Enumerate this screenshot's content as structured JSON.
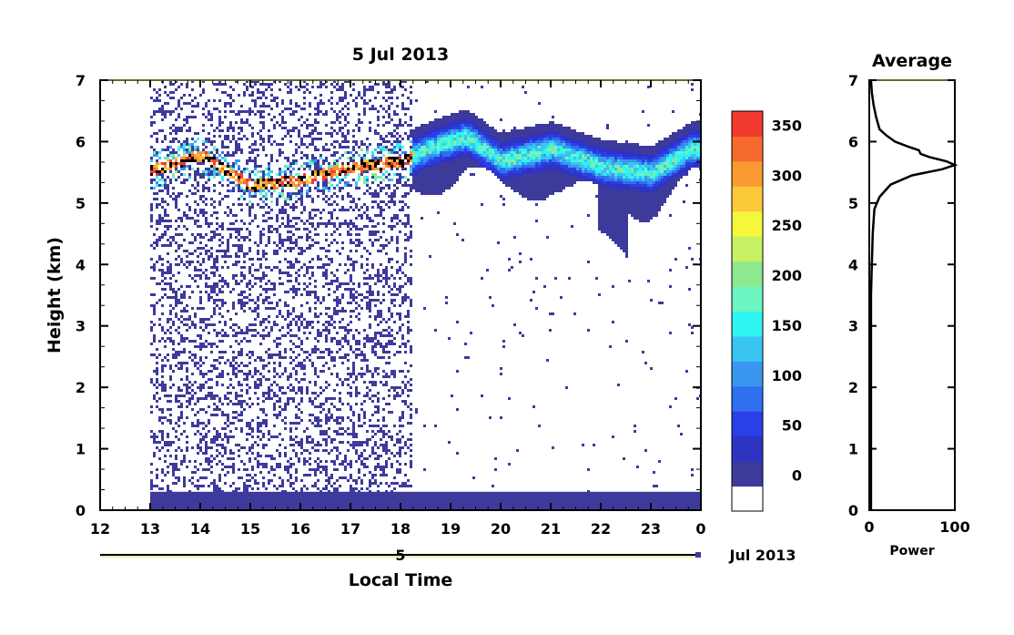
{
  "chart_data": [
    {
      "type": "heatmap",
      "title": "5 Jul 2013",
      "xlabel": "Local Time",
      "ylabel": "Height (km)",
      "x_ticks": [
        "12",
        "13",
        "14",
        "15",
        "16",
        "17",
        "18",
        "19",
        "20",
        "21",
        "22",
        "23",
        "0"
      ],
      "y_ticks": [
        "0",
        "1",
        "2",
        "3",
        "4",
        "5",
        "6",
        "7"
      ],
      "xlim": [
        12,
        24
      ],
      "ylim": [
        0,
        7
      ],
      "date_axis": {
        "day_label": "5",
        "month_label": "Jul 2013"
      },
      "colorbar": {
        "tick_labels": [
          "0",
          "50",
          "100",
          "150",
          "200",
          "250",
          "300",
          "350"
        ],
        "range": [
          -25,
          375
        ],
        "colors": [
          "#ffffff",
          "#3d3a9c",
          "#2f33c2",
          "#2a3fe8",
          "#2f6ff0",
          "#3a96ee",
          "#39c4f2",
          "#2ff5f2",
          "#6df5c2",
          "#8ee88e",
          "#c8f064",
          "#f5f73a",
          "#fbc93a",
          "#fb9a30",
          "#f76a2e",
          "#f23a30"
        ]
      },
      "features": {
        "data_start_hour": 13.0,
        "surface_clutter_top_km": 0.3,
        "cloud_layer_km": [
          5.0,
          6.2
        ],
        "peak_echo_track": [
          [
            13.0,
            5.55
          ],
          [
            14.0,
            5.8
          ],
          [
            15.0,
            5.3
          ],
          [
            16.0,
            5.4
          ],
          [
            17.0,
            5.6
          ],
          [
            18.0,
            5.7
          ],
          [
            18.7,
            5.95
          ],
          [
            19.3,
            6.1
          ],
          [
            20.0,
            5.7
          ],
          [
            21.0,
            5.9
          ],
          [
            22.0,
            5.6
          ],
          [
            23.0,
            5.5
          ],
          [
            23.8,
            5.9
          ]
        ]
      }
    },
    {
      "type": "line",
      "title": "Average",
      "xlabel": "Power",
      "x_ticks": [
        "0",
        "100"
      ],
      "y_ticks": [
        "0",
        "1",
        "2",
        "3",
        "4",
        "5",
        "6",
        "7"
      ],
      "xlim": [
        0,
        100
      ],
      "ylim": [
        0,
        7
      ],
      "series": [
        {
          "color": "#000000",
          "points": [
            [
              2,
              0.0
            ],
            [
              2,
              0.5
            ],
            [
              2,
              1.0
            ],
            [
              2,
              1.5
            ],
            [
              2,
              2.0
            ],
            [
              2,
              2.5
            ],
            [
              2,
              3.0
            ],
            [
              2,
              3.5
            ],
            [
              3,
              4.0
            ],
            [
              4,
              4.5
            ],
            [
              6,
              4.9
            ],
            [
              12,
              5.1
            ],
            [
              25,
              5.3
            ],
            [
              50,
              5.45
            ],
            [
              85,
              5.55
            ],
            [
              100,
              5.62
            ],
            [
              90,
              5.68
            ],
            [
              70,
              5.75
            ],
            [
              60,
              5.8
            ],
            [
              58,
              5.86
            ],
            [
              45,
              5.92
            ],
            [
              30,
              6.0
            ],
            [
              20,
              6.1
            ],
            [
              12,
              6.2
            ],
            [
              8,
              6.4
            ],
            [
              5,
              6.6
            ],
            [
              3,
              6.8
            ],
            [
              2,
              7.0
            ]
          ]
        }
      ]
    }
  ]
}
